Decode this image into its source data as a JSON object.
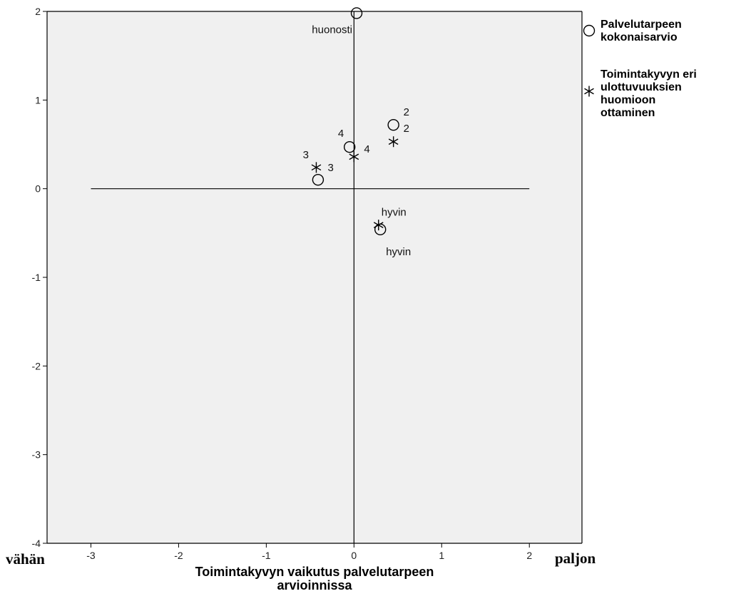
{
  "chart_data": {
    "type": "scatter",
    "xlabel_lines": [
      "Toimintakyvyn vaikutus palvelutarpeen",
      "arvioinnissa"
    ],
    "ylabel": "",
    "xlim": [
      -3.5,
      2.6
    ],
    "ylim": [
      -4,
      2
    ],
    "x_ticks": [
      -3,
      -2,
      -1,
      0,
      1,
      2
    ],
    "y_ticks": [
      -4,
      -3,
      -2,
      -1,
      0,
      1,
      2
    ],
    "left_annotation": "vähän",
    "right_annotation": "paljon",
    "reference_lines": {
      "horizontal": {
        "y": 0,
        "x_from": -3,
        "x_to": 2
      },
      "vertical": {
        "x": 0,
        "y_from": -4,
        "y_to": 2
      }
    },
    "series": [
      {
        "name_lines": [
          "Palvelutarpeen",
          "kokonaisarvio"
        ],
        "marker": "circle",
        "points": [
          {
            "label": "huonosti",
            "x": 0.03,
            "y": 1.98
          },
          {
            "label": "2",
            "x": 0.45,
            "y": 0.72
          },
          {
            "label": "4",
            "x": -0.05,
            "y": 0.47
          },
          {
            "label": "3",
            "x": -0.41,
            "y": 0.1
          },
          {
            "label": "hyvin",
            "x": 0.3,
            "y": -0.46
          }
        ]
      },
      {
        "name_lines": [
          "Toimintakyvyn eri",
          "ulottuvuuksien",
          "huomioon",
          "ottaminen"
        ],
        "marker": "star",
        "points": [
          {
            "label": "2",
            "x": 0.45,
            "y": 0.53
          },
          {
            "label": "4",
            "x": 0.0,
            "y": 0.36
          },
          {
            "label": "3",
            "x": -0.43,
            "y": 0.24
          },
          {
            "label": "hyvin",
            "x": 0.28,
            "y": -0.41
          }
        ]
      }
    ],
    "legend": "right",
    "grid": false
  }
}
